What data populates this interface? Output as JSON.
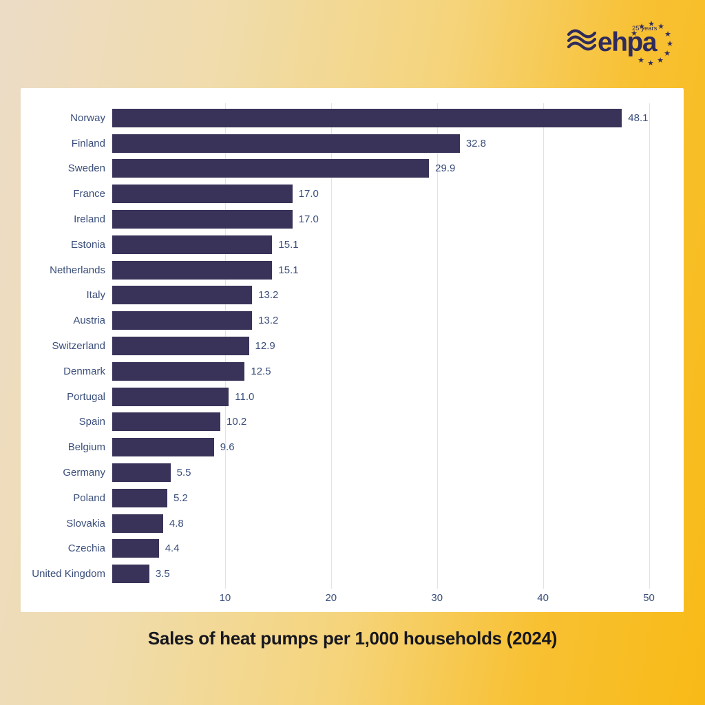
{
  "logo": {
    "text": "ehpa",
    "tagline": "25 years",
    "color": "#2f2b5c"
  },
  "title": "Sales of heat pumps per 1,000 households (2024)",
  "chart_data": {
    "type": "bar",
    "orientation": "horizontal",
    "title": "Sales of heat pumps per 1,000 households (2024)",
    "categories": [
      "Norway",
      "Finland",
      "Sweden",
      "France",
      "Ireland",
      "Estonia",
      "Netherlands",
      "Italy",
      "Austria",
      "Switzerland",
      "Denmark",
      "Portugal",
      "Spain",
      "Belgium",
      "Germany",
      "Poland",
      "Slovakia",
      "Czechia",
      "United Kingdom"
    ],
    "values": [
      48.1,
      32.8,
      29.9,
      17.0,
      17.0,
      15.1,
      15.1,
      13.2,
      13.2,
      12.9,
      12.5,
      11.0,
      10.2,
      9.6,
      5.5,
      5.2,
      4.8,
      4.4,
      3.5
    ],
    "value_labels": [
      "48.1",
      "32.8",
      "29.9",
      "17.0",
      "17.0",
      "15.1",
      "15.1",
      "13.2",
      "13.2",
      "12.9",
      "12.5",
      "11.0",
      "10.2",
      "9.6",
      "5.5",
      "5.2",
      "4.8",
      "4.4",
      "3.5"
    ],
    "xticks": [
      10,
      20,
      30,
      40,
      50
    ],
    "xlim": [
      0,
      51.2
    ],
    "grid": true,
    "legend": false,
    "bar_color": "#393359",
    "label_color": "#3a4e7a",
    "gridline_color": "#e3e3e6"
  }
}
